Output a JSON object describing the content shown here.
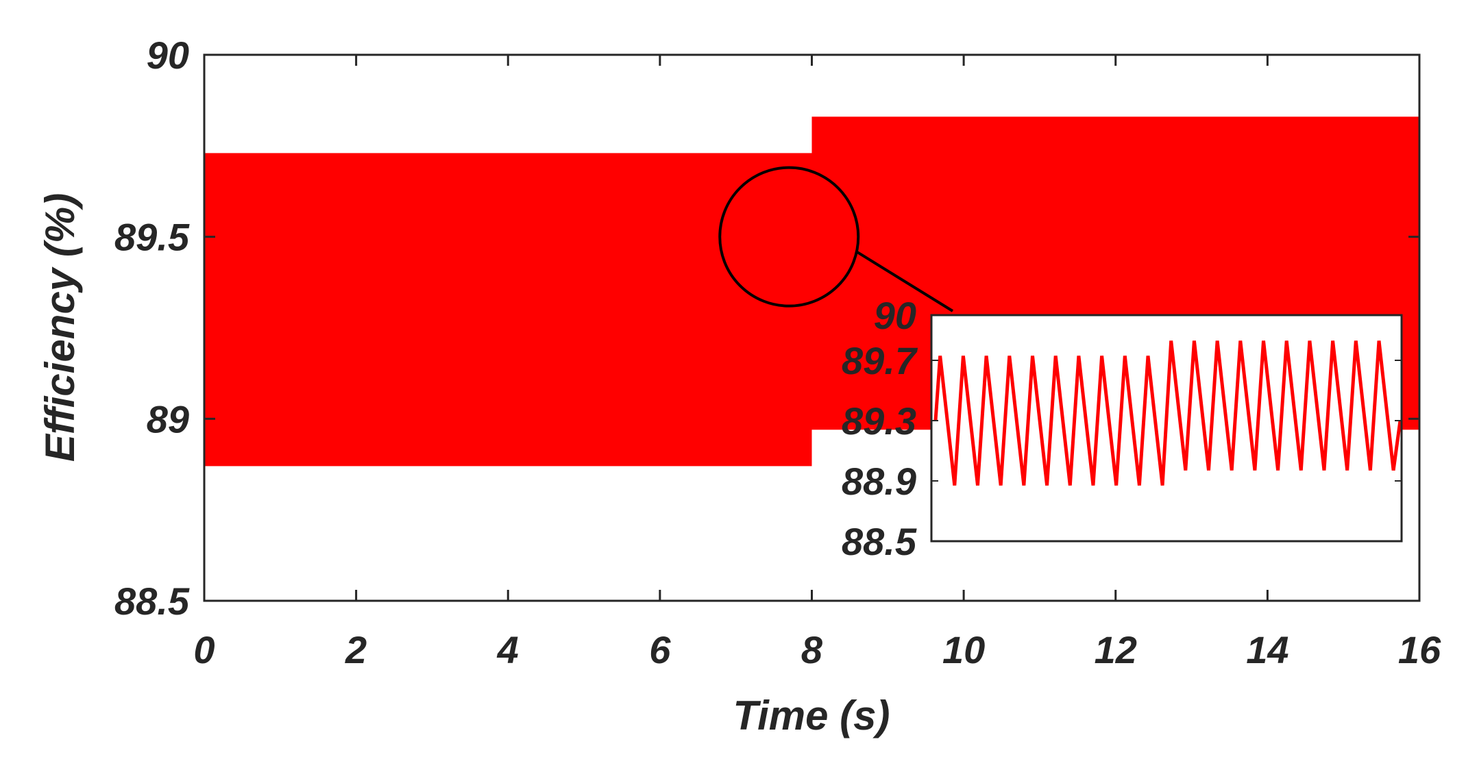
{
  "chart_data": [
    {
      "type": "line",
      "description_role": "main",
      "xlabel": "Time (s)",
      "ylabel": "Efficiency (%)",
      "xlim": [
        0,
        16
      ],
      "ylim": [
        88.5,
        90
      ],
      "xticks": [
        "0",
        "2",
        "4",
        "6",
        "8",
        "10",
        "12",
        "14",
        "16"
      ],
      "yticks": [
        "88.5",
        "89",
        "89.5",
        "90"
      ],
      "grid": false,
      "legend": "none",
      "series_color": "#ff0000",
      "series": [
        {
          "segments": [
            {
              "t_start": 0,
              "t_end": 8,
              "min": 88.87,
              "max": 89.73
            },
            {
              "t_start": 8,
              "t_end": 16,
              "min": 88.97,
              "max": 89.83
            }
          ]
        }
      ],
      "annotation": {
        "shape": "circle",
        "center": [
          7.7,
          89.5
        ],
        "meaning": "zoom region"
      }
    },
    {
      "type": "line",
      "description_role": "inset",
      "ylim": [
        88.5,
        90
      ],
      "yticks": [
        "88.5",
        "88.9",
        "89.3",
        "89.7",
        "90"
      ],
      "series_color": "#ff0000",
      "series": [
        {
          "phase1": {
            "cycles": 10,
            "min": 88.87,
            "max": 89.73
          },
          "phase2": {
            "cycles": 10,
            "min": 88.97,
            "max": 89.83
          }
        }
      ]
    }
  ]
}
